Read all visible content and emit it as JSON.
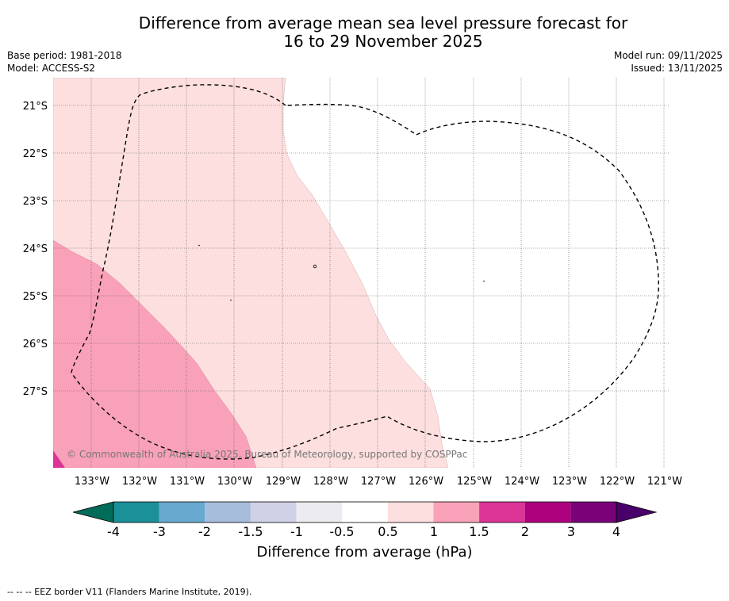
{
  "header": {
    "title_line1": "Difference from average mean sea level pressure forecast for",
    "title_line2": "16 to 29 November 2025",
    "base_period": "Base period: 1981-2018",
    "model": "Model: ACCESS-S2",
    "model_run": "Model run: 09/11/2025",
    "issued": "Issued: 13/11/2025"
  },
  "map": {
    "lat_labels": [
      "21°S",
      "22°S",
      "23°S",
      "24°S",
      "25°S",
      "26°S",
      "27°S"
    ],
    "lon_labels": [
      "133°W",
      "132°W",
      "131°W",
      "130°W",
      "129°W",
      "128°W",
      "127°W",
      "126°W",
      "125°W",
      "124°W",
      "123°W",
      "122°W",
      "121°W"
    ],
    "copyright": "© Commonwealth of Australia 2025, Bureau of Meteorology, supported by COSPPac",
    "colors": {
      "c_0_5_1": "#fddfdf",
      "c_1_1_5": "#f9a1b8",
      "c_1_5_2": "#dd3497",
      "ocean": "#ffffff",
      "grid": "#555555",
      "eez": "#000000"
    }
  },
  "colorbar": {
    "ticks": [
      "-4",
      "-3",
      "-2",
      "-1.5",
      "-1",
      "-0.5",
      "0.5",
      "1",
      "1.5",
      "2",
      "3",
      "4"
    ],
    "colors": [
      "#016c59",
      "#1c9099",
      "#67a9cf",
      "#a6bddb",
      "#d0d1e6",
      "#ececf0",
      "#ffffff",
      "#fddfdf",
      "#f9a1b8",
      "#dd3497",
      "#ae017e",
      "#7a0177",
      "#49006a"
    ],
    "label": "Difference from average (hPa)"
  },
  "footer": {
    "eez_legend": "-- -- -- EEZ border V11 (Flanders Marine Institute, 2019)."
  }
}
